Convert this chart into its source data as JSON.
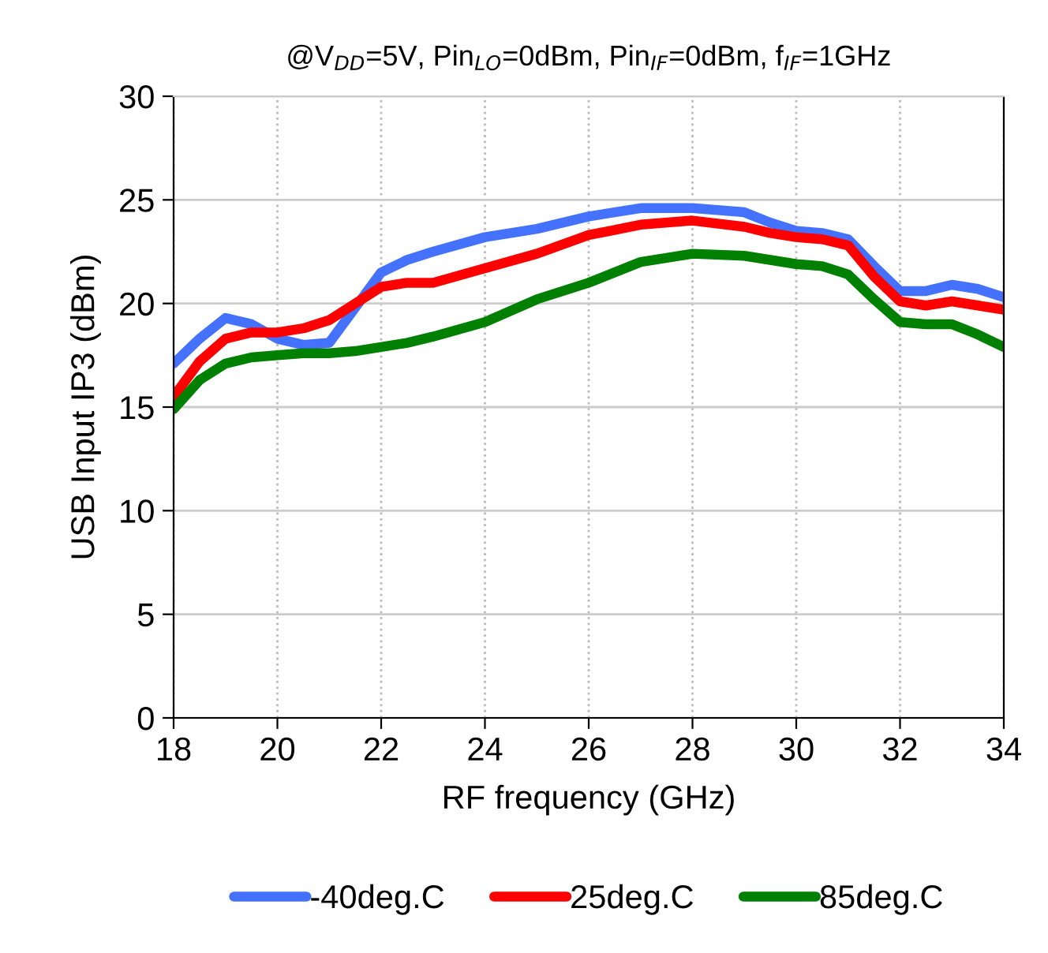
{
  "chart_data": {
    "type": "line",
    "title": "@V$_{DD}$=5V, Pin$_{LO}$=0dBm, Pin$_{IF}$=0dBm, f$_{IF}$=1GHz",
    "xlabel": "RF frequency (GHz)",
    "ylabel": "USB Input IP3 (dBm)",
    "x": [
      18,
      18.5,
      19,
      19.5,
      20,
      20.5,
      21,
      21.5,
      22,
      22.5,
      23,
      24,
      25,
      26,
      27,
      28,
      29,
      29.5,
      30,
      30.5,
      31,
      31.5,
      32,
      32.5,
      33,
      33.5,
      34
    ],
    "series": [
      {
        "name": "-40deg.C",
        "color": "#4472ff",
        "values": [
          17.1,
          18.3,
          19.3,
          19.0,
          18.3,
          18.0,
          18.1,
          19.8,
          21.5,
          22.1,
          22.5,
          23.2,
          23.6,
          24.2,
          24.6,
          24.6,
          24.4,
          23.9,
          23.5,
          23.4,
          23.1,
          21.8,
          20.6,
          20.6,
          20.9,
          20.7,
          20.3
        ]
      },
      {
        "name": "25deg.C",
        "color": "#ff0000",
        "values": [
          15.5,
          17.2,
          18.3,
          18.6,
          18.6,
          18.8,
          19.2,
          20.0,
          20.8,
          21.0,
          21.0,
          21.7,
          22.4,
          23.3,
          23.8,
          24.0,
          23.7,
          23.4,
          23.2,
          23.1,
          22.8,
          21.3,
          20.1,
          19.9,
          20.1,
          19.9,
          19.7
        ]
      },
      {
        "name": "85deg.C",
        "color": "#008000",
        "values": [
          14.9,
          16.3,
          17.1,
          17.4,
          17.5,
          17.6,
          17.6,
          17.7,
          17.9,
          18.1,
          18.4,
          19.1,
          20.2,
          21.0,
          22.0,
          22.4,
          22.3,
          22.1,
          21.9,
          21.8,
          21.4,
          20.2,
          19.1,
          19.0,
          19.0,
          18.5,
          17.9
        ]
      }
    ],
    "xlim": [
      18,
      34
    ],
    "xticks": [
      18,
      20,
      22,
      24,
      26,
      28,
      30,
      32,
      34
    ],
    "ylim": [
      0,
      30
    ],
    "yticks": [
      0,
      5,
      10,
      15,
      20,
      25,
      30
    ],
    "grid": true,
    "legend": "bottom",
    "marker": "none",
    "line_style": "solid"
  }
}
